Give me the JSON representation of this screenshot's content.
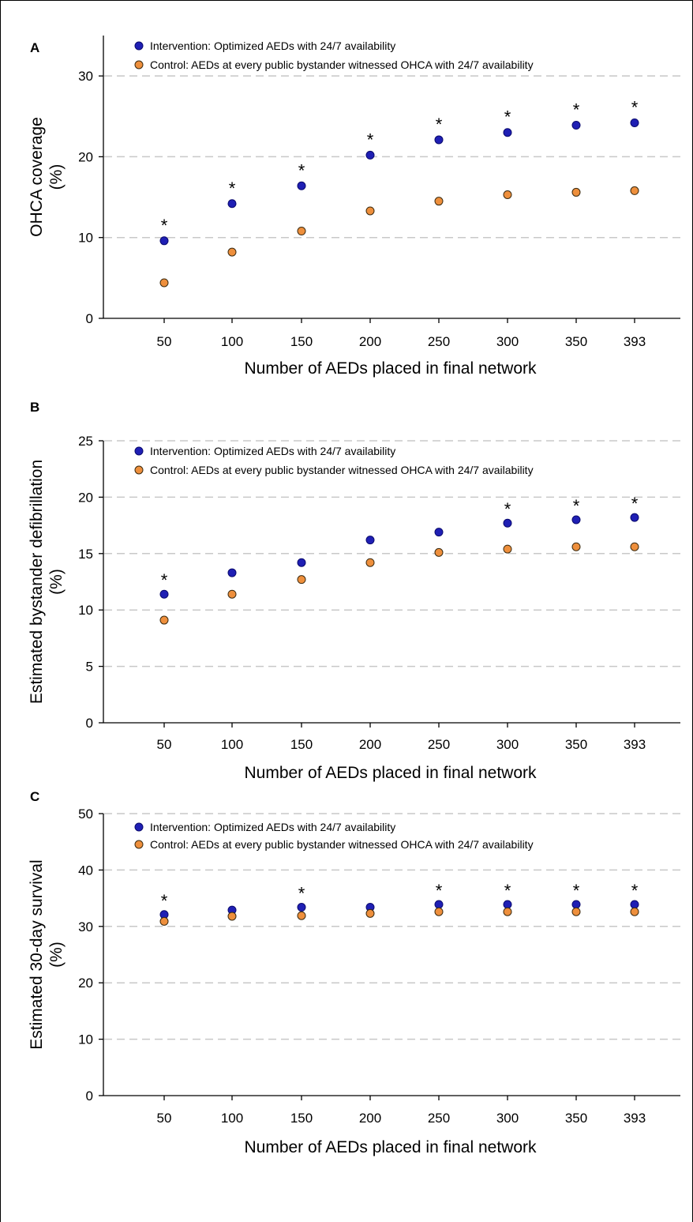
{
  "colors": {
    "intervention": "#1f1fb4",
    "intervention_stroke": "#0a0a6e",
    "control": "#ee8f3c",
    "control_stroke": "#3a2a10",
    "grid": "#c8c8c8",
    "axis": "#000000"
  },
  "chart_data": [
    {
      "type": "scatter",
      "panel_label": "A",
      "xlabel": "Number of AEDs placed in final network",
      "ylabel_lines": [
        "OHCA coverage",
        "(%)"
      ],
      "categories": [
        "50",
        "100",
        "150",
        "200",
        "250",
        "300",
        "350",
        "393"
      ],
      "ylim": [
        0,
        35
      ],
      "yticks": [
        0,
        10,
        20,
        30
      ],
      "grid": "dashed horizontal at 10, 20, 30",
      "legend": [
        {
          "series": "intervention",
          "label": "Intervention: Optimized AEDs with 24/7 availability"
        },
        {
          "series": "control",
          "label": "Control: AEDs at every public bystander witnessed OHCA with 24/7 availability"
        }
      ],
      "series": [
        {
          "key": "intervention",
          "values": [
            9.6,
            14.2,
            16.4,
            20.2,
            22.1,
            23.0,
            23.9,
            24.2
          ]
        },
        {
          "key": "control",
          "values": [
            4.4,
            8.2,
            10.8,
            13.3,
            14.5,
            15.3,
            15.6,
            15.8
          ]
        }
      ],
      "significance": [
        "*",
        "*",
        "*",
        "*",
        "*",
        "*",
        "*",
        "*"
      ]
    },
    {
      "type": "scatter",
      "panel_label": "B",
      "xlabel": "Number of AEDs placed in final network",
      "ylabel_lines": [
        "Estimated bystander defibrillation",
        "(%)"
      ],
      "categories": [
        "50",
        "100",
        "150",
        "200",
        "250",
        "300",
        "350",
        "393"
      ],
      "ylim": [
        0,
        25
      ],
      "yticks": [
        0,
        5,
        10,
        15,
        20,
        25
      ],
      "grid": "dashed horizontal at 5, 10, 15, 20, 25",
      "legend": [
        {
          "series": "intervention",
          "label": "Intervention: Optimized AEDs with 24/7 availability"
        },
        {
          "series": "control",
          "label": "Control: AEDs at every public bystander witnessed OHCA with 24/7 availability"
        }
      ],
      "series": [
        {
          "key": "intervention",
          "values": [
            11.4,
            13.3,
            14.2,
            16.2,
            16.9,
            17.7,
            18.0,
            18.2
          ]
        },
        {
          "key": "control",
          "values": [
            9.1,
            11.4,
            12.7,
            14.2,
            15.1,
            15.4,
            15.6,
            15.6
          ]
        }
      ],
      "significance": [
        "*",
        "",
        "",
        "",
        "",
        "*",
        "*",
        "*"
      ]
    },
    {
      "type": "scatter",
      "panel_label": "C",
      "xlabel": "Number of AEDs placed in final network",
      "ylabel_lines": [
        "Estimated 30-day survival",
        "(%)"
      ],
      "categories": [
        "50",
        "100",
        "150",
        "200",
        "250",
        "300",
        "350",
        "393"
      ],
      "ylim": [
        0,
        50
      ],
      "yticks": [
        0,
        10,
        20,
        30,
        40,
        50
      ],
      "grid": "dashed horizontal at 10, 20, 30, 40, 50",
      "legend": [
        {
          "series": "intervention",
          "label": "Intervention: Optimized AEDs with 24/7 availability"
        },
        {
          "series": "control",
          "label": "Control: AEDs at every public bystander witnessed OHCA with 24/7 availability"
        }
      ],
      "series": [
        {
          "key": "intervention",
          "values": [
            32.1,
            32.9,
            33.4,
            33.4,
            33.9,
            33.9,
            33.9,
            33.9
          ]
        },
        {
          "key": "control",
          "values": [
            30.9,
            31.8,
            31.9,
            32.3,
            32.6,
            32.6,
            32.6,
            32.6
          ]
        }
      ],
      "significance": [
        "*",
        "",
        "*",
        "",
        "*",
        "*",
        "*",
        "*"
      ]
    }
  ]
}
